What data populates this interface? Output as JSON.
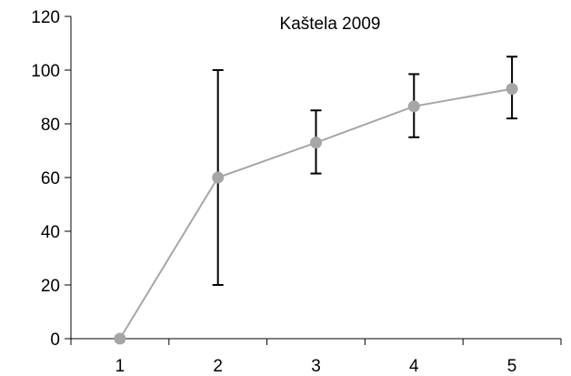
{
  "chart_data": {
    "type": "line",
    "title": "Kaštela 2009",
    "xlabel": "",
    "ylabel": "",
    "categories": [
      "1",
      "2",
      "3",
      "4",
      "5"
    ],
    "ylim": [
      0,
      120
    ],
    "yticks": [
      0,
      20,
      40,
      60,
      80,
      100,
      120
    ],
    "grid": false,
    "legend": "none",
    "series": [
      {
        "values": [
          0,
          60,
          73,
          86.5,
          93
        ],
        "error_low": [
          null,
          20,
          61.5,
          75,
          82
        ],
        "error_high": [
          null,
          100,
          85,
          98.5,
          105
        ],
        "color": "#a6a6a6"
      }
    ],
    "colors": {
      "axis": "#000000",
      "error_bar": "#000000",
      "line": "#a6a6a6",
      "marker": "#a6a6a6"
    }
  }
}
